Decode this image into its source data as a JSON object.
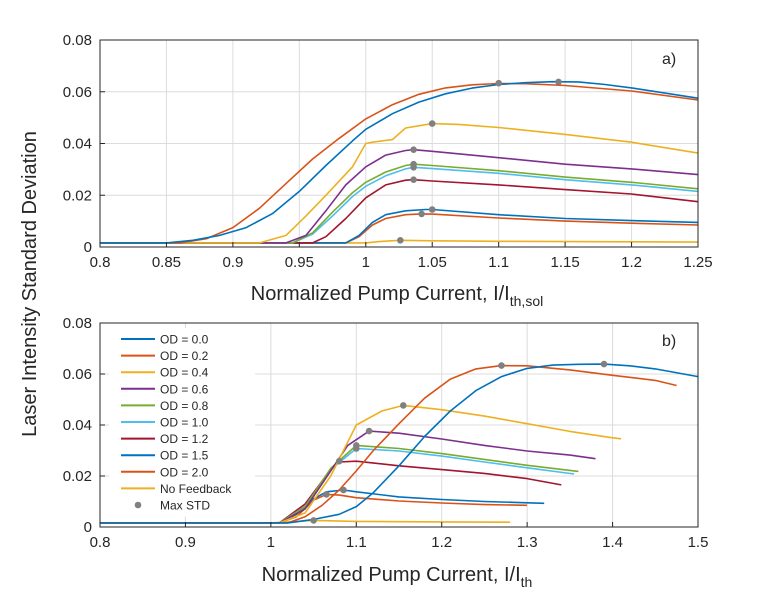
{
  "figure": {
    "ylabel": "Laser Intensity Standard Deviation"
  },
  "series_styles": [
    {
      "name": "OD = 0.0",
      "color": "#0072BD",
      "marker": "line"
    },
    {
      "name": "OD = 0.2",
      "color": "#D95319",
      "marker": "line"
    },
    {
      "name": "OD = 0.4",
      "color": "#EDB120",
      "marker": "line"
    },
    {
      "name": "OD = 0.6",
      "color": "#7E2F8E",
      "marker": "line"
    },
    {
      "name": "OD = 0.8",
      "color": "#77AC30",
      "marker": "line"
    },
    {
      "name": "OD = 1.0",
      "color": "#4DBEEE",
      "marker": "line"
    },
    {
      "name": "OD = 1.2",
      "color": "#A2142F",
      "marker": "line"
    },
    {
      "name": "OD = 1.5",
      "color": "#0072BD",
      "marker": "line"
    },
    {
      "name": "OD = 2.0",
      "color": "#D95319",
      "marker": "line"
    },
    {
      "name": "No Feedback",
      "color": "#EDB120",
      "marker": "line"
    },
    {
      "name": "Max STD",
      "color": "#808080",
      "marker": "dot"
    }
  ],
  "chart_data": [
    {
      "type": "line",
      "panel_label": "a)",
      "xlabel_main": "Normalized Pump Current, I/I",
      "xlabel_sub": "th,sol",
      "xlim": [
        0.8,
        1.25
      ],
      "ylim": [
        0,
        0.08
      ],
      "xticks": [
        "0.8",
        "0.85",
        "0.9",
        "0.95",
        "1",
        "1.05",
        "1.1",
        "1.15",
        "1.2",
        "1.25"
      ],
      "yticks": [
        "0",
        "0.02",
        "0.04",
        "0.06",
        "0.08"
      ],
      "grid": true,
      "series": [
        {
          "name": "OD = 0.0",
          "x": [
            0.8,
            0.85,
            0.87,
            0.89,
            0.91,
            0.93,
            0.95,
            0.97,
            0.99,
            1.0,
            1.02,
            1.04,
            1.06,
            1.08,
            1.1,
            1.12,
            1.14,
            1.16,
            1.18,
            1.2,
            1.25
          ],
          "y": [
            0.0016,
            0.0016,
            0.0026,
            0.0045,
            0.0075,
            0.013,
            0.0215,
            0.0315,
            0.041,
            0.0455,
            0.0515,
            0.056,
            0.0592,
            0.0614,
            0.0628,
            0.0635,
            0.0639,
            0.0638,
            0.0628,
            0.0615,
            0.0575
          ]
        },
        {
          "name": "OD = 0.2",
          "x": [
            0.8,
            0.86,
            0.88,
            0.9,
            0.92,
            0.94,
            0.96,
            0.98,
            1.0,
            1.02,
            1.04,
            1.06,
            1.08,
            1.1,
            1.12,
            1.15,
            1.2,
            1.25
          ],
          "y": [
            0.0016,
            0.0016,
            0.0032,
            0.0075,
            0.015,
            0.0245,
            0.034,
            0.042,
            0.0495,
            0.055,
            0.059,
            0.0615,
            0.0627,
            0.0632,
            0.0631,
            0.0624,
            0.0603,
            0.0568
          ]
        },
        {
          "name": "OD = 0.4",
          "x": [
            0.8,
            0.92,
            0.94,
            0.955,
            0.97,
            0.99,
            1.0,
            1.005,
            1.02,
            1.03,
            1.05,
            1.07,
            1.1,
            1.15,
            1.2,
            1.25
          ],
          "y": [
            0.0016,
            0.0016,
            0.0045,
            0.012,
            0.02,
            0.031,
            0.04,
            0.0405,
            0.0415,
            0.046,
            0.0477,
            0.0474,
            0.0462,
            0.0435,
            0.0405,
            0.0363
          ]
        },
        {
          "name": "OD = 0.6",
          "x": [
            0.8,
            0.94,
            0.955,
            0.97,
            0.985,
            1.0,
            1.015,
            1.03,
            1.036,
            1.05,
            1.1,
            1.15,
            1.2,
            1.25
          ],
          "y": [
            0.0016,
            0.0016,
            0.0045,
            0.014,
            0.024,
            0.031,
            0.0355,
            0.0373,
            0.0376,
            0.037,
            0.0345,
            0.032,
            0.0302,
            0.028
          ]
        },
        {
          "name": "OD = 0.8",
          "x": [
            0.8,
            0.945,
            0.96,
            0.975,
            0.99,
            1.0,
            1.015,
            1.03,
            1.036,
            1.05,
            1.1,
            1.15,
            1.2,
            1.25
          ],
          "y": [
            0.0016,
            0.0016,
            0.0055,
            0.0135,
            0.021,
            0.025,
            0.029,
            0.0315,
            0.032,
            0.0315,
            0.0295,
            0.027,
            0.025,
            0.0225
          ]
        },
        {
          "name": "OD = 1.0",
          "x": [
            0.8,
            0.945,
            0.96,
            0.975,
            0.99,
            1.0,
            1.015,
            1.03,
            1.036,
            1.05,
            1.1,
            1.15,
            1.2,
            1.25
          ],
          "y": [
            0.0016,
            0.0016,
            0.005,
            0.012,
            0.0195,
            0.0235,
            0.0275,
            0.0302,
            0.0308,
            0.0303,
            0.0285,
            0.026,
            0.024,
            0.0215
          ]
        },
        {
          "name": "OD = 1.2",
          "x": [
            0.8,
            0.96,
            0.97,
            0.985,
            1.0,
            1.015,
            1.03,
            1.036,
            1.05,
            1.1,
            1.15,
            1.2,
            1.25
          ],
          "y": [
            0.0016,
            0.0016,
            0.004,
            0.011,
            0.019,
            0.024,
            0.0258,
            0.026,
            0.0255,
            0.024,
            0.0222,
            0.0205,
            0.0175
          ]
        },
        {
          "name": "OD = 1.5",
          "x": [
            0.8,
            0.985,
            0.995,
            1.005,
            1.015,
            1.03,
            1.045,
            1.05,
            1.1,
            1.15,
            1.2,
            1.25
          ],
          "y": [
            0.0016,
            0.0016,
            0.0045,
            0.0095,
            0.0125,
            0.014,
            0.0145,
            0.0145,
            0.0125,
            0.011,
            0.0102,
            0.0095
          ]
        },
        {
          "name": "OD = 2.0",
          "x": [
            0.8,
            0.985,
            0.995,
            1.005,
            1.015,
            1.03,
            1.042,
            1.05,
            1.1,
            1.15,
            1.2,
            1.25
          ],
          "y": [
            0.0016,
            0.0016,
            0.004,
            0.0085,
            0.011,
            0.0125,
            0.0128,
            0.0127,
            0.0112,
            0.01,
            0.0092,
            0.0085
          ]
        },
        {
          "name": "No Feedback",
          "x": [
            0.8,
            1.0,
            1.01,
            1.026,
            1.05,
            1.1,
            1.2,
            1.25
          ],
          "y": [
            0.0016,
            0.0016,
            0.0021,
            0.0026,
            0.0024,
            0.0022,
            0.002,
            0.0019
          ]
        }
      ],
      "max_std": [
        {
          "x": 1.1,
          "y": 0.0633
        },
        {
          "x": 1.145,
          "y": 0.0638
        },
        {
          "x": 1.05,
          "y": 0.0477
        },
        {
          "x": 1.036,
          "y": 0.0376
        },
        {
          "x": 1.036,
          "y": 0.032
        },
        {
          "x": 1.036,
          "y": 0.0308
        },
        {
          "x": 1.036,
          "y": 0.026
        },
        {
          "x": 1.05,
          "y": 0.0145
        },
        {
          "x": 1.042,
          "y": 0.0128
        },
        {
          "x": 1.026,
          "y": 0.0026
        }
      ]
    },
    {
      "type": "line",
      "panel_label": "b)",
      "xlabel_main": "Normalized Pump Current, I/I",
      "xlabel_sub": "th",
      "xlim": [
        0.8,
        1.5
      ],
      "ylim": [
        0,
        0.08
      ],
      "xticks": [
        "0.8",
        "0.9",
        "1",
        "1.1",
        "1.2",
        "1.3",
        "1.4",
        "1.5"
      ],
      "yticks": [
        "0",
        "0.02",
        "0.04",
        "0.06",
        "0.08"
      ],
      "grid": true,
      "legend_position": "upper-left",
      "series": [
        {
          "name": "OD = 0.0",
          "x": [
            0.8,
            1.02,
            1.05,
            1.08,
            1.1,
            1.12,
            1.15,
            1.18,
            1.21,
            1.24,
            1.27,
            1.3,
            1.33,
            1.36,
            1.39,
            1.42,
            1.45,
            1.5
          ],
          "y": [
            0.0016,
            0.0016,
            0.003,
            0.005,
            0.008,
            0.0135,
            0.024,
            0.0355,
            0.0455,
            0.0535,
            0.059,
            0.0622,
            0.0635,
            0.0638,
            0.0639,
            0.0632,
            0.062,
            0.059
          ]
        },
        {
          "name": "OD = 0.2",
          "x": [
            0.8,
            1.02,
            1.04,
            1.06,
            1.08,
            1.1,
            1.12,
            1.15,
            1.18,
            1.21,
            1.24,
            1.27,
            1.3,
            1.35,
            1.4,
            1.45,
            1.475
          ],
          "y": [
            0.0016,
            0.0016,
            0.004,
            0.0085,
            0.0145,
            0.022,
            0.03,
            0.0405,
            0.0505,
            0.058,
            0.062,
            0.0633,
            0.0632,
            0.0616,
            0.0595,
            0.0575,
            0.0555
          ]
        },
        {
          "name": "OD = 0.4",
          "x": [
            0.8,
            1.01,
            1.04,
            1.07,
            1.1,
            1.13,
            1.155,
            1.2,
            1.25,
            1.3,
            1.35,
            1.4,
            1.41
          ],
          "y": [
            0.0016,
            0.0016,
            0.0055,
            0.02,
            0.04,
            0.0455,
            0.0477,
            0.046,
            0.0435,
            0.0405,
            0.0375,
            0.035,
            0.0346
          ]
        },
        {
          "name": "OD = 0.6",
          "x": [
            0.8,
            1.01,
            1.04,
            1.07,
            1.09,
            1.115,
            1.15,
            1.2,
            1.25,
            1.3,
            1.35,
            1.38
          ],
          "y": [
            0.0016,
            0.0016,
            0.007,
            0.022,
            0.032,
            0.0376,
            0.0368,
            0.0345,
            0.032,
            0.0298,
            0.0282,
            0.0268
          ]
        },
        {
          "name": "OD = 0.8",
          "x": [
            0.8,
            1.01,
            1.04,
            1.07,
            1.1,
            1.15,
            1.2,
            1.25,
            1.3,
            1.36
          ],
          "y": [
            0.0016,
            0.0016,
            0.008,
            0.023,
            0.032,
            0.0308,
            0.0288,
            0.0265,
            0.0242,
            0.0218
          ]
        },
        {
          "name": "OD = 1.0",
          "x": [
            0.8,
            1.01,
            1.04,
            1.07,
            1.1,
            1.15,
            1.2,
            1.25,
            1.3,
            1.355
          ],
          "y": [
            0.0016,
            0.0016,
            0.008,
            0.0225,
            0.0308,
            0.0298,
            0.0278,
            0.0255,
            0.0232,
            0.0208
          ]
        },
        {
          "name": "OD = 1.2",
          "x": [
            0.8,
            1.01,
            1.04,
            1.07,
            1.08,
            1.1,
            1.15,
            1.2,
            1.25,
            1.3,
            1.34
          ],
          "y": [
            0.0016,
            0.0016,
            0.009,
            0.0225,
            0.0255,
            0.0258,
            0.024,
            0.0225,
            0.021,
            0.019,
            0.0165
          ]
        },
        {
          "name": "OD = 1.5",
          "x": [
            0.8,
            1.01,
            1.03,
            1.05,
            1.065,
            1.085,
            1.1,
            1.15,
            1.2,
            1.25,
            1.3,
            1.32
          ],
          "y": [
            0.0016,
            0.0016,
            0.005,
            0.011,
            0.0138,
            0.0145,
            0.0138,
            0.0118,
            0.0108,
            0.01,
            0.0095,
            0.0093
          ]
        },
        {
          "name": "OD = 2.0",
          "x": [
            0.8,
            1.01,
            1.03,
            1.05,
            1.065,
            1.08,
            1.1,
            1.15,
            1.2,
            1.25,
            1.3
          ],
          "y": [
            0.0016,
            0.0016,
            0.004,
            0.0105,
            0.0128,
            0.0125,
            0.0115,
            0.0102,
            0.0094,
            0.0088,
            0.0085
          ]
        },
        {
          "name": "No Feedback",
          "x": [
            0.8,
            1.0,
            1.02,
            1.05,
            1.1,
            1.2,
            1.28
          ],
          "y": [
            0.0016,
            0.0016,
            0.002,
            0.0026,
            0.0022,
            0.002,
            0.0019
          ]
        }
      ],
      "max_std": [
        {
          "x": 1.27,
          "y": 0.0633
        },
        {
          "x": 1.39,
          "y": 0.0639
        },
        {
          "x": 1.155,
          "y": 0.0477
        },
        {
          "x": 1.115,
          "y": 0.0376
        },
        {
          "x": 1.1,
          "y": 0.032
        },
        {
          "x": 1.1,
          "y": 0.0308
        },
        {
          "x": 1.08,
          "y": 0.0258
        },
        {
          "x": 1.085,
          "y": 0.0145
        },
        {
          "x": 1.065,
          "y": 0.0128
        },
        {
          "x": 1.05,
          "y": 0.0026
        }
      ]
    }
  ]
}
